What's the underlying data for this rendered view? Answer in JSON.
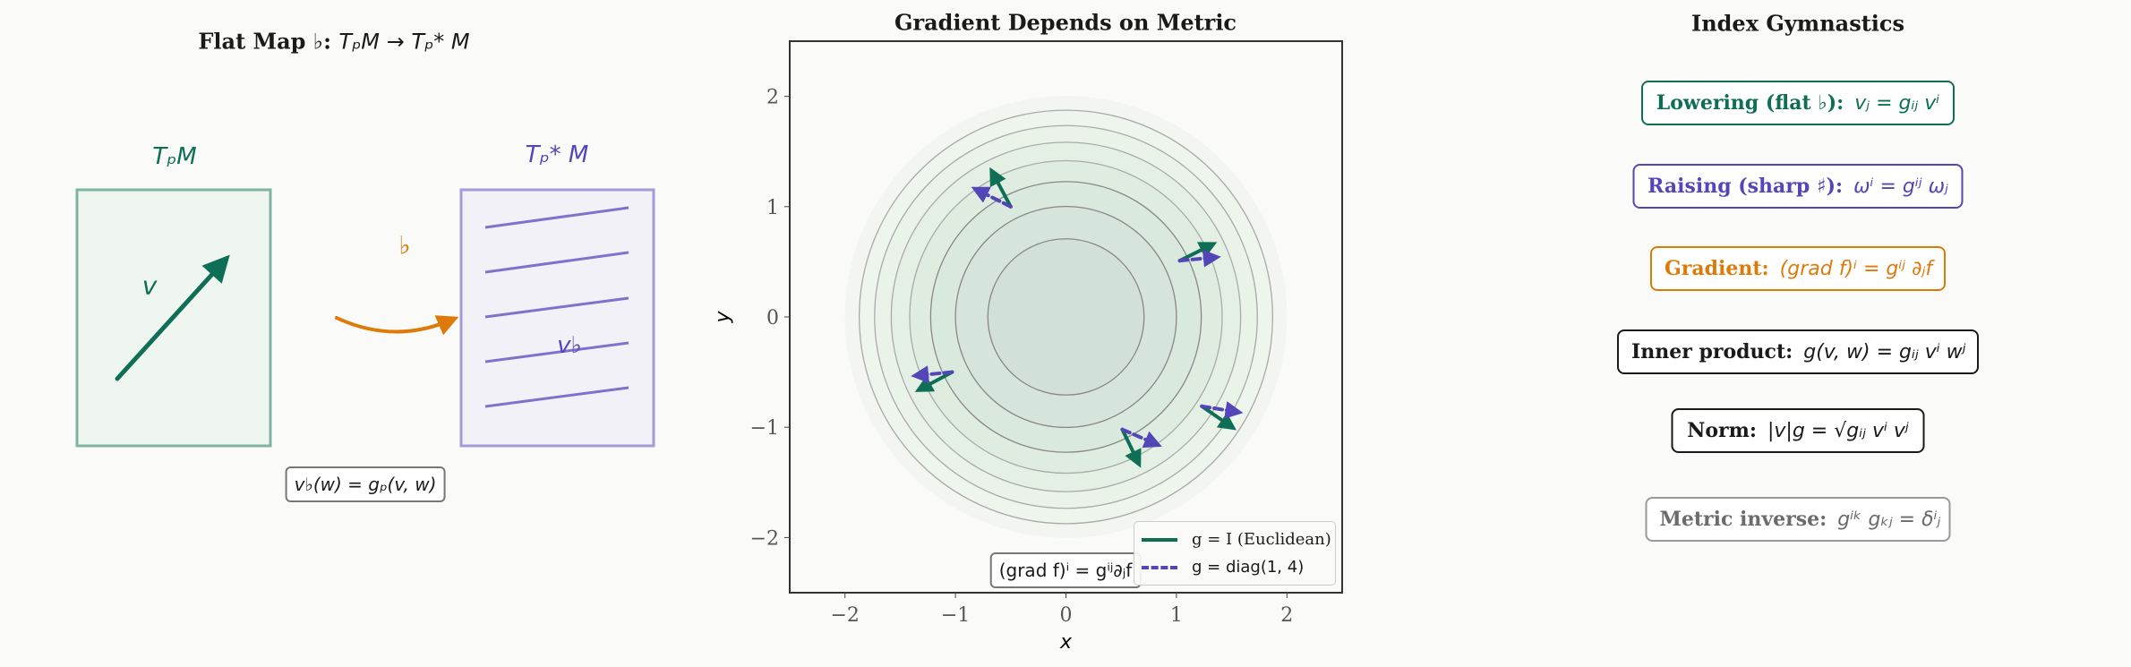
{
  "left_panel": {
    "title": "Flat Map ♭: ",
    "title_math": "TₚM → Tₚ* M",
    "tangent_label": "TₚM",
    "cotangent_label": "Tₚ* M",
    "vector_label": "v",
    "flat_symbol": "♭",
    "covector_label": "v♭",
    "formula": "v♭(w) = gₚ(v, w)",
    "colors": {
      "tangent": "#0f6e56",
      "cotangent": "#5446b8",
      "map": "#dd7a0a"
    }
  },
  "middle_panel": {
    "formula_box": "(grad f)ⁱ = gⁱʲ∂ⱼf"
  },
  "chart_data": {
    "type": "contour",
    "title": "Gradient Depends on Metric",
    "xlabel": "x",
    "ylabel": "y",
    "xlim": [
      -2.5,
      2.5
    ],
    "ylim": [
      -2.5,
      2.5
    ],
    "xticks": [
      -2,
      -1,
      0,
      1,
      2
    ],
    "yticks": [
      -2,
      -1,
      0,
      1,
      2
    ],
    "xtick_labels": [
      "−2",
      "−1",
      "0",
      "1",
      "2"
    ],
    "ytick_labels": [
      "−2",
      "−1",
      "0",
      "1",
      "2"
    ],
    "function": "f = x² + y²",
    "contour_levels": [
      0.5,
      1.0,
      1.5,
      2.0,
      2.5,
      3.0,
      3.5
    ],
    "legend_placement": "lower-right",
    "series": [
      {
        "name": "g = I (Euclidean)",
        "color": "#0f6e56",
        "style": "solid",
        "arrows": [
          {
            "x0": -0.5,
            "y0": 1.0,
            "x1": -0.66,
            "y1": 1.3
          },
          {
            "x0": 1.03,
            "y0": 0.51,
            "x1": 1.31,
            "y1": 0.65
          },
          {
            "x0": -1.03,
            "y0": -0.5,
            "x1": -1.31,
            "y1": -0.65
          },
          {
            "x0": 1.23,
            "y0": -0.81,
            "x1": 1.49,
            "y1": -0.99
          },
          {
            "x0": 0.51,
            "y0": -1.02,
            "x1": 0.65,
            "y1": -1.31
          }
        ]
      },
      {
        "name": "g = diag(1, 4)",
        "color": "#5446b8",
        "style": "dashed",
        "arrows": [
          {
            "x0": -0.5,
            "y0": 1.0,
            "x1": -0.8,
            "y1": 1.15
          },
          {
            "x0": 1.03,
            "y0": 0.51,
            "x1": 1.34,
            "y1": 0.54
          },
          {
            "x0": -1.03,
            "y0": -0.5,
            "x1": -1.34,
            "y1": -0.53
          },
          {
            "x0": 1.23,
            "y0": -0.81,
            "x1": 1.54,
            "y1": -0.86
          },
          {
            "x0": 0.51,
            "y0": -1.02,
            "x1": 0.81,
            "y1": -1.15
          }
        ]
      }
    ]
  },
  "right_panel": {
    "title": "Index Gymnastics",
    "items": [
      {
        "label": "Lowering (flat ♭):",
        "formula": "vⱼ = gᵢⱼ vⁱ",
        "color": "#0f6e56"
      },
      {
        "label": "Raising (sharp ♯):",
        "formula": "ωⁱ = gⁱʲ ωⱼ",
        "color": "#5446b8"
      },
      {
        "label": "Gradient:",
        "formula": "(grad f)ⁱ = gⁱʲ ∂ⱼf",
        "color": "#dd7a0a"
      },
      {
        "label": "Inner product:",
        "formula": "g(v, w) = gᵢⱼ vⁱ wʲ",
        "color": "#1a1a1a"
      },
      {
        "label": "Norm:",
        "formula": "|v|g = √gᵢⱼ vⁱ vʲ",
        "color": "#1a1a1a"
      },
      {
        "label": "Metric inverse:",
        "formula": "gⁱᵏ gₖⱼ = δⁱⱼ",
        "color": "#6b6b6b"
      }
    ]
  }
}
